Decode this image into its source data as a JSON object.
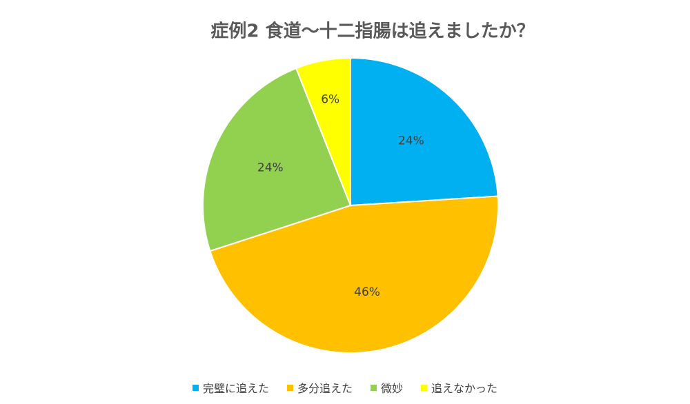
{
  "chart_data": {
    "type": "pie",
    "title": "症例2  食道〜十二指腸は追えましたか？",
    "categories": [
      "完璧に追えた",
      "多分追えた",
      "微妙",
      "追えなかった"
    ],
    "values": [
      24,
      46,
      24,
      6
    ],
    "value_labels": [
      "24%",
      "46%",
      "24%",
      "6%"
    ],
    "colors": [
      "#00b0f0",
      "#ffc000",
      "#92d050",
      "#ffff00"
    ],
    "legend": "bottom"
  }
}
